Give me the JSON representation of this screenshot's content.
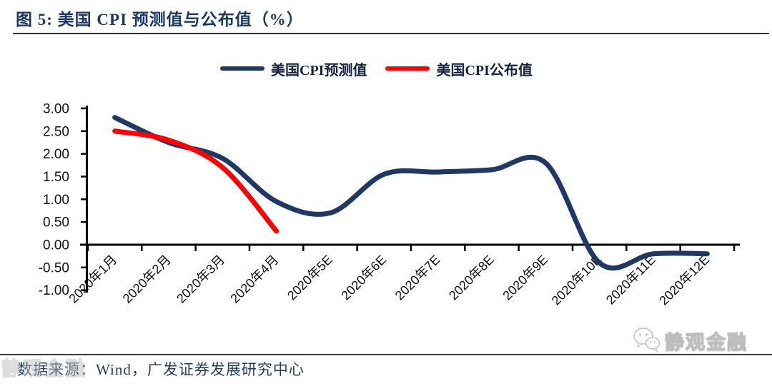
{
  "header": {
    "title": "图 5:  美国 CPI 预测值与公布值（%）"
  },
  "legend": {
    "items": [
      {
        "label": "美国CPI预测值",
        "color": "#1f3864"
      },
      {
        "label": "美国CPI公布值",
        "color": "#fe0000"
      }
    ]
  },
  "chart_data": {
    "type": "line",
    "title": "美国 CPI 预测值与公布值（%）",
    "smoothed": true,
    "legend_position": "top",
    "grid": false,
    "categories": [
      "2020年1月",
      "2020年2月",
      "2020年3月",
      "2020年4月",
      "2020年5E",
      "2020年6E",
      "2020年7E",
      "2020年8E",
      "2020年9E",
      "2020年10E",
      "2020年11E",
      "2020年12E"
    ],
    "series": [
      {
        "name": "美国CPI预测值",
        "color": "#1f3864",
        "values": [
          2.8,
          2.25,
          1.9,
          0.95,
          0.7,
          1.55,
          1.6,
          1.65,
          1.8,
          -0.4,
          -0.2,
          -0.2
        ]
      },
      {
        "name": "美国CPI公布值",
        "color": "#fe0000",
        "values": [
          2.5,
          2.3,
          1.7,
          0.3
        ]
      }
    ],
    "ylim": [
      -1.0,
      3.0
    ],
    "y_tick_labels": [
      "3.00",
      "2.50",
      "2.00",
      "1.50",
      "1.00",
      "0.50",
      "0.00",
      "-0.50",
      "-1.00"
    ],
    "xlabel": "",
    "ylabel": ""
  },
  "footer": {
    "source_text": "数据来源：Wind，广发证券发展研究中心",
    "watermark_text": "静观金融"
  }
}
